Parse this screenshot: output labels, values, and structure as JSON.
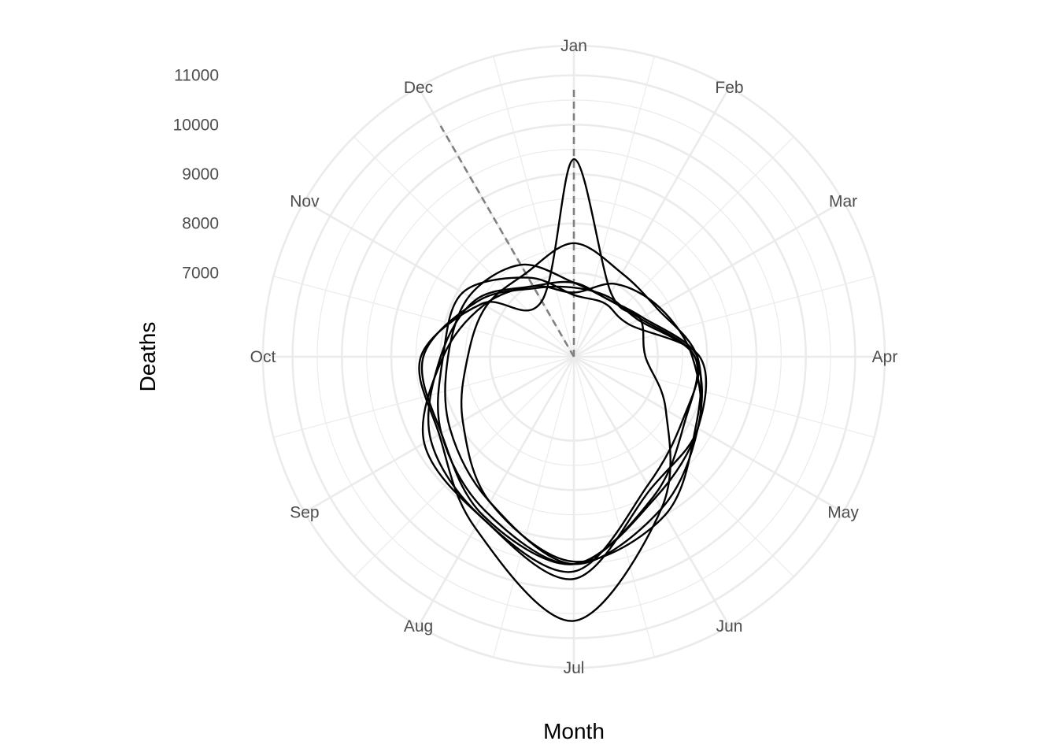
{
  "chart_data": {
    "type": "line",
    "coord": "polar",
    "title": "",
    "xlabel": "Month",
    "ylabel": "Deaths",
    "x": [
      "Jan",
      "Feb",
      "Mar",
      "Apr",
      "May",
      "Jun",
      "Jul",
      "Aug",
      "Sep",
      "Oct",
      "Nov",
      "Dec"
    ],
    "y_ticks": [
      "7000",
      "8000",
      "9000",
      "10000",
      "11000"
    ],
    "y_tick_values": [
      7000,
      8000,
      9000,
      10000,
      11000
    ],
    "radius_domain": [
      5300,
      11600
    ],
    "grid": true,
    "legend": "none",
    "line_color": "#000000",
    "grid_color": "#ebebeb",
    "reference_color": "#808080",
    "series": [
      {
        "values": [
          9300,
          6800,
          6850,
          6750,
          7450,
          8850,
          10650,
          9300,
          8450,
          8400,
          7450,
          6600
        ]
      },
      {
        "values": [
          6800,
          6650,
          6900,
          7800,
          7850,
          8300,
          9650,
          9050,
          8650,
          8000,
          7600,
          6950
        ]
      },
      {
        "values": [
          6800,
          6650,
          6850,
          7750,
          8200,
          8850,
          9500,
          8700,
          8200,
          7850,
          7750,
          7450
        ]
      },
      {
        "values": [
          6700,
          6700,
          6800,
          7750,
          7900,
          8550,
          9500,
          9000,
          8400,
          8350,
          7550,
          6900
        ]
      },
      {
        "values": [
          6600,
          7000,
          7300,
          7700,
          8200,
          8400,
          9800,
          9050,
          8800,
          7950,
          7400,
          6950
        ]
      },
      {
        "values": [
          7600,
          7250,
          7250,
          7800,
          8150,
          9000,
          9450,
          8700,
          7900,
          7450,
          7350,
          7250
        ]
      },
      {
        "values": [
          6550,
          6550,
          6600,
          7850,
          8200,
          8600,
          9500,
          8900,
          8400,
          7950,
          7900,
          7150
        ]
      }
    ],
    "reference_lines": [
      {
        "month": "Jan",
        "value": 10800
      },
      {
        "month": "Dec",
        "value": 10700
      }
    ]
  }
}
